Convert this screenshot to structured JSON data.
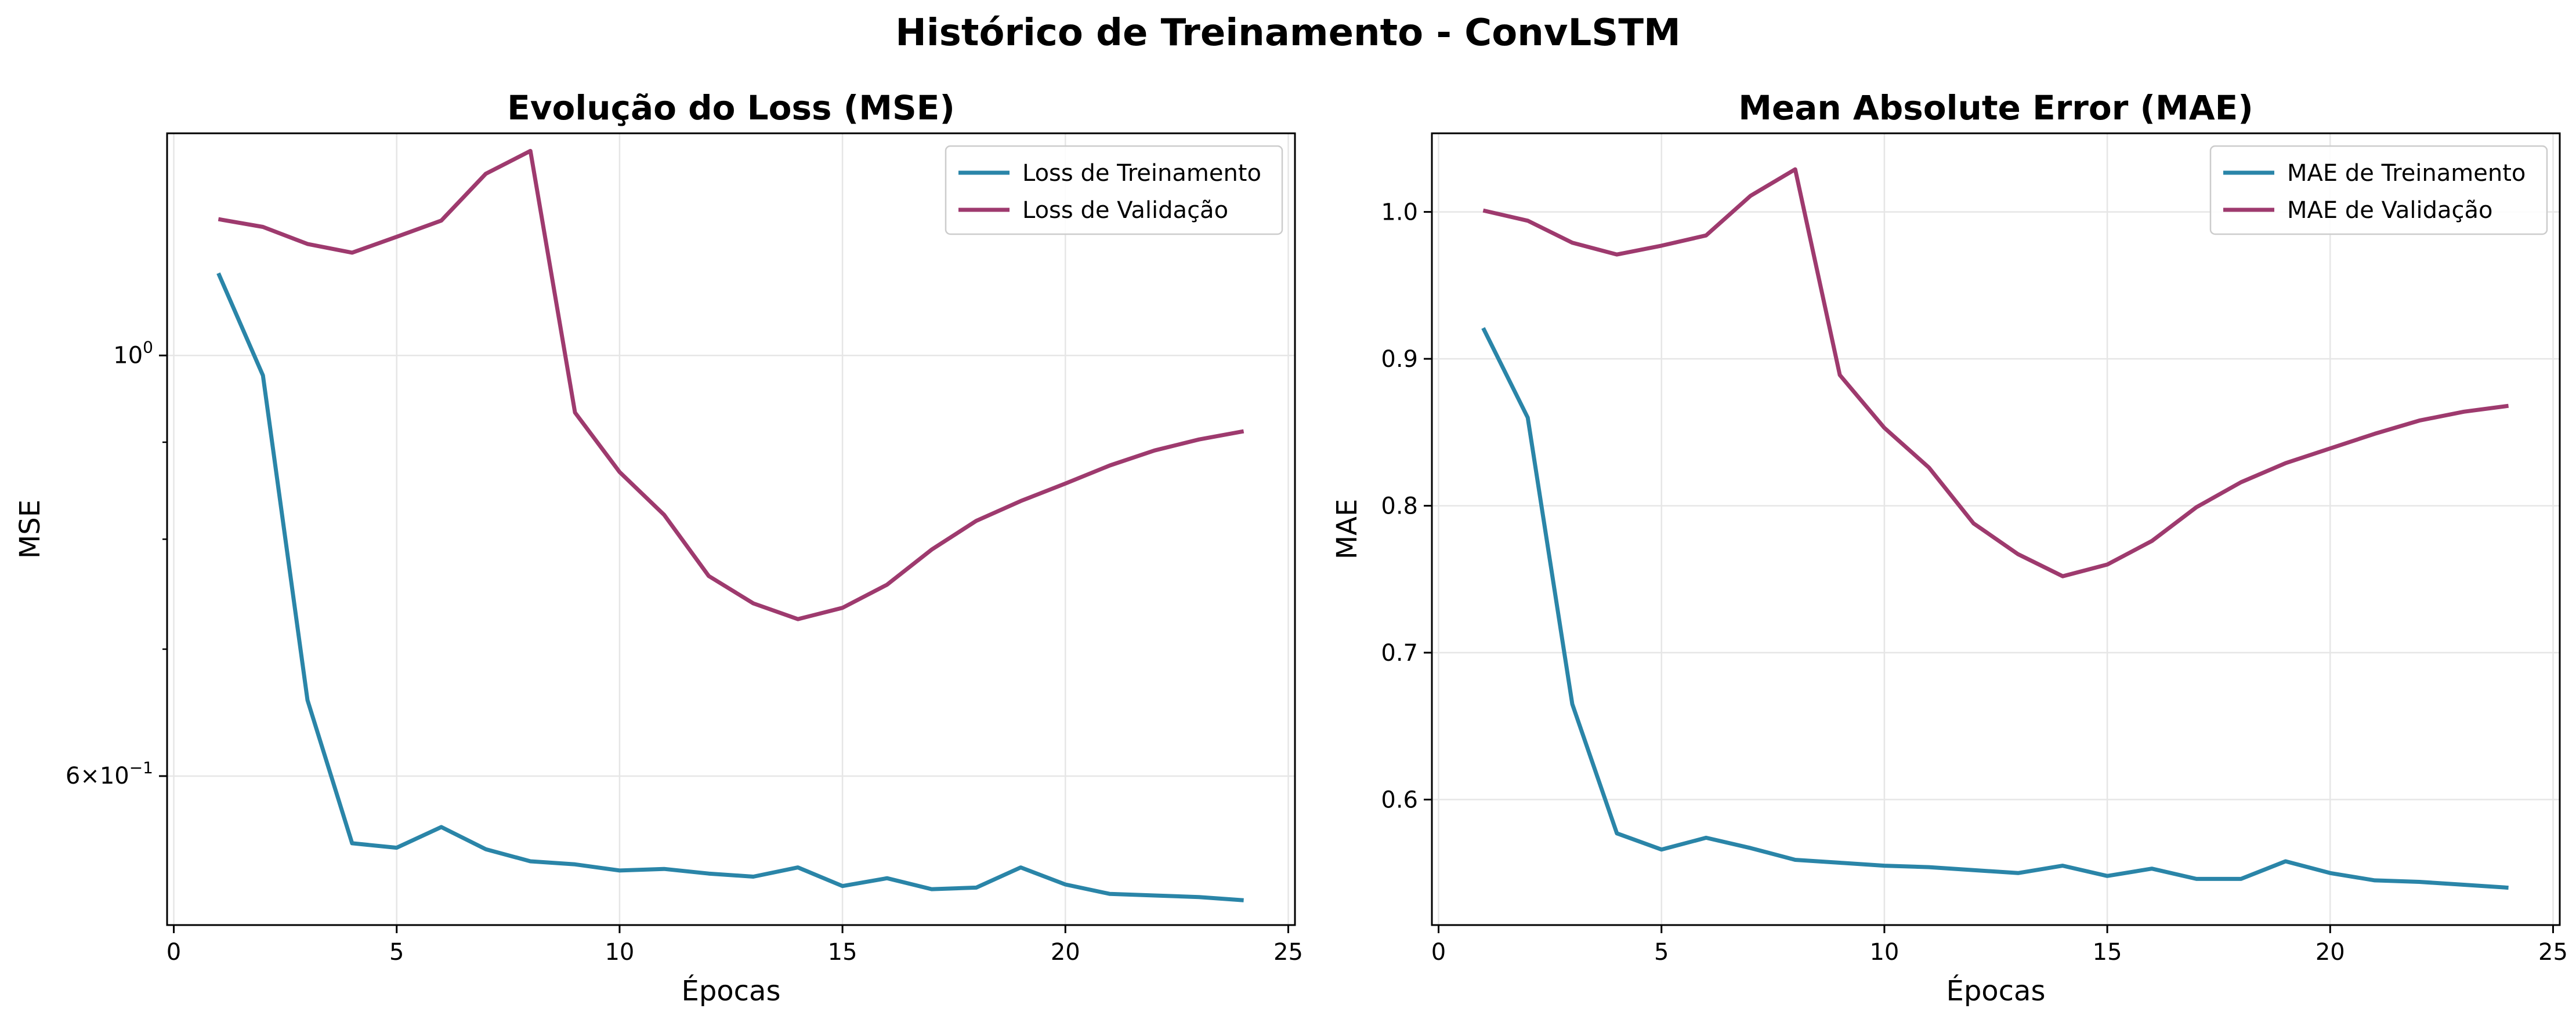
{
  "figure": {
    "suptitle": "Histórico de Treinamento - ConvLSTM"
  },
  "colors": {
    "train": "#2a85a8",
    "val": "#9e3a6e",
    "grid": "#e6e6e6"
  },
  "chart_data": [
    {
      "type": "line",
      "title": "Evolução do Loss (MSE)",
      "xlabel": "Épocas",
      "ylabel": "MSE",
      "yscale": "log",
      "xlim": [
        -0.15,
        25.15
      ],
      "ylim": [
        0.5007,
        1.3097
      ],
      "xticks": [
        0,
        5,
        10,
        15,
        20,
        25
      ],
      "yticks": [
        {
          "value": 1.0,
          "base": "10",
          "exponent": "0",
          "prefix": ""
        },
        {
          "value": 0.6,
          "base": "10",
          "exponent": "−1",
          "prefix": "6×"
        }
      ],
      "grid": true,
      "legend_position": "upper right",
      "x": [
        1,
        2,
        3,
        4,
        5,
        6,
        7,
        8,
        9,
        10,
        11,
        12,
        13,
        14,
        15,
        16,
        17,
        18,
        19,
        20,
        21,
        22,
        23,
        24
      ],
      "series": [
        {
          "name": "Loss de Treinamento",
          "color": "#2a85a8",
          "values": [
            1.105,
            0.976,
            0.658,
            0.553,
            0.55,
            0.564,
            0.549,
            0.541,
            0.539,
            0.535,
            0.536,
            0.533,
            0.531,
            0.537,
            0.525,
            0.53,
            0.523,
            0.524,
            0.537,
            0.526,
            0.52,
            0.519,
            0.518,
            0.516
          ]
        },
        {
          "name": "Loss de Validação",
          "color": "#9e3a6e",
          "values": [
            1.18,
            1.169,
            1.145,
            1.133,
            1.155,
            1.178,
            1.247,
            1.282,
            0.933,
            0.868,
            0.824,
            0.765,
            0.74,
            0.726,
            0.736,
            0.757,
            0.79,
            0.818,
            0.838,
            0.856,
            0.875,
            0.891,
            0.903,
            0.912
          ]
        }
      ]
    },
    {
      "type": "line",
      "title": "Mean Absolute Error (MAE)",
      "xlabel": "Épocas",
      "ylabel": "MAE",
      "yscale": "linear",
      "xlim": [
        -0.15,
        25.15
      ],
      "ylim": [
        0.5146,
        1.0535
      ],
      "xticks": [
        0,
        5,
        10,
        15,
        20,
        25
      ],
      "yticks": [
        0.6,
        0.7,
        0.8,
        0.9,
        1.0
      ],
      "ytick_labels": [
        "0.6",
        "0.7",
        "0.8",
        "0.9",
        "1.0"
      ],
      "grid": true,
      "legend_position": "upper right",
      "x": [
        1,
        2,
        3,
        4,
        5,
        6,
        7,
        8,
        9,
        10,
        11,
        12,
        13,
        14,
        15,
        16,
        17,
        18,
        19,
        20,
        21,
        22,
        23,
        24
      ],
      "series": [
        {
          "name": "MAE de Treinamento",
          "color": "#2a85a8",
          "values": [
            0.921,
            0.86,
            0.665,
            0.577,
            0.566,
            0.574,
            0.567,
            0.559,
            0.557,
            0.555,
            0.554,
            0.552,
            0.55,
            0.555,
            0.548,
            0.553,
            0.546,
            0.546,
            0.558,
            0.55,
            0.545,
            0.544,
            0.542,
            0.54
          ]
        },
        {
          "name": "MAE de Validação",
          "color": "#9e3a6e",
          "values": [
            1.001,
            0.994,
            0.979,
            0.971,
            0.977,
            0.984,
            1.011,
            1.029,
            0.889,
            0.853,
            0.826,
            0.788,
            0.767,
            0.752,
            0.76,
            0.776,
            0.799,
            0.816,
            0.829,
            0.839,
            0.849,
            0.858,
            0.864,
            0.868
          ]
        }
      ]
    }
  ]
}
